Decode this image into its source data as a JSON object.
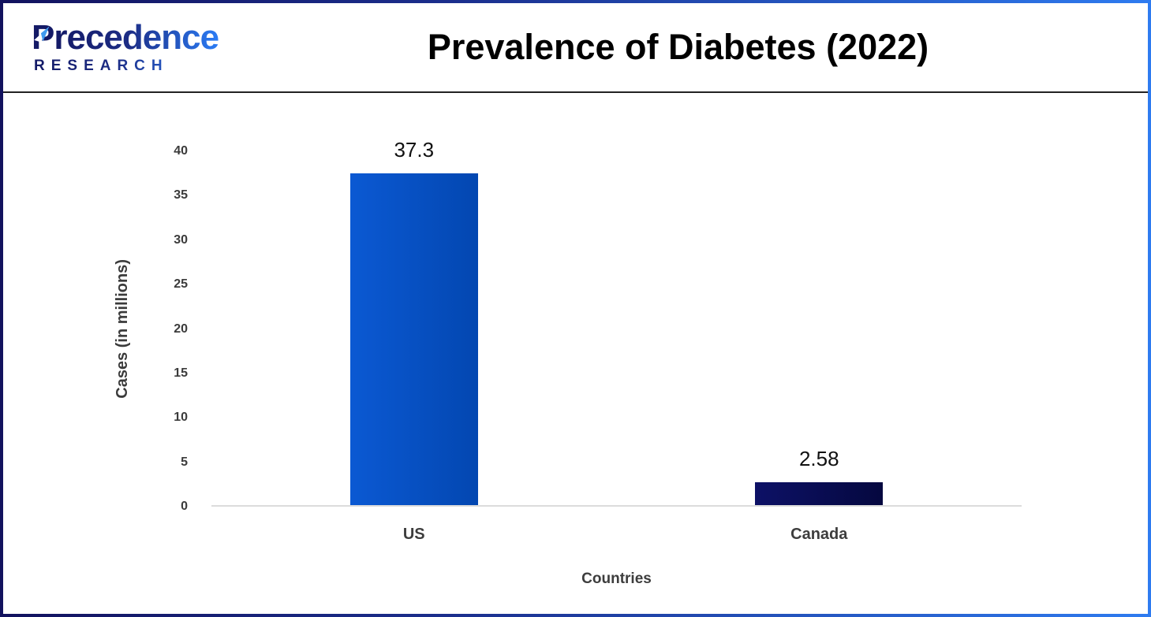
{
  "brand": {
    "name_first_letter": "P",
    "name_rest": "recedence",
    "subtitle": "RESEARCH"
  },
  "title": "Prevalence of Diabetes (2022)",
  "chart_data": {
    "type": "bar",
    "title": "Prevalence of Diabetes (2022)",
    "categories": [
      "US",
      "Canada"
    ],
    "values": [
      37.3,
      2.58
    ],
    "value_labels": [
      "37.3",
      "2.58"
    ],
    "xlabel": "Countries",
    "ylabel": "Cases (in millions)",
    "ylim": [
      0,
      40
    ],
    "yticks": [
      0,
      5,
      10,
      15,
      20,
      25,
      30,
      35,
      40
    ],
    "grid": false,
    "legend": "none",
    "bar_colors": [
      [
        "#0b59d3",
        "#0347b1"
      ],
      [
        "#0d1166",
        "#05083f"
      ]
    ]
  },
  "colors": {
    "border_gradient_start": "#12125e",
    "border_gradient_end": "#2e7bf0",
    "header_rule": "#222222",
    "baseline": "#dcdcdc",
    "tick_text": "#3b3b3b",
    "axis_label_text": "#3d3d3d",
    "value_text": "#111111",
    "brand_navy": "#141a66",
    "brand_blue": "#2b7cf5",
    "title_text": "#000000"
  }
}
